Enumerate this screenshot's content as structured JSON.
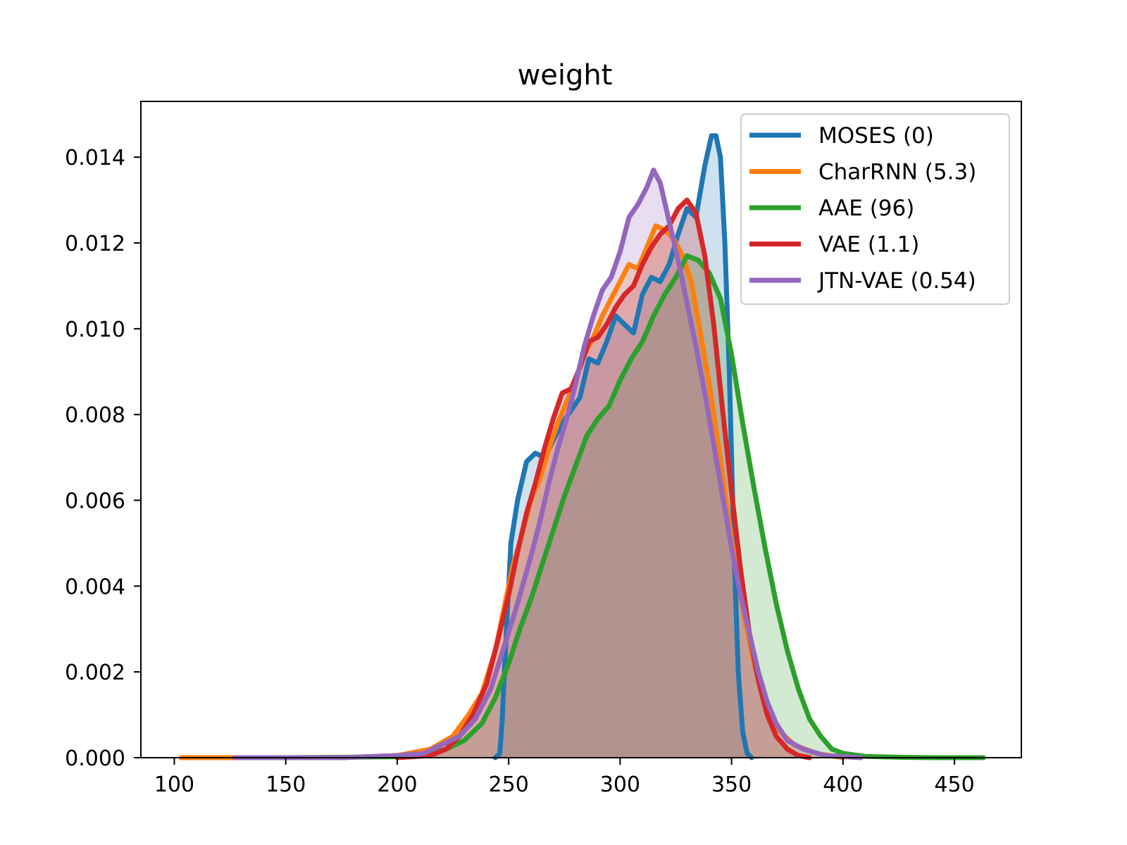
{
  "chart_data": {
    "type": "area",
    "title": "weight",
    "xlabel": "",
    "ylabel": "",
    "xlim": [
      85,
      480
    ],
    "ylim": [
      0,
      0.0153
    ],
    "x_ticks": [
      100,
      150,
      200,
      250,
      300,
      350,
      400,
      450
    ],
    "x_tick_labels": [
      "100",
      "150",
      "200",
      "250",
      "300",
      "350",
      "400",
      "450"
    ],
    "y_ticks": [
      0.0,
      0.002,
      0.004,
      0.006,
      0.008,
      0.01,
      0.012,
      0.014
    ],
    "y_tick_labels": [
      "0.000",
      "0.002",
      "0.004",
      "0.006",
      "0.008",
      "0.010",
      "0.012",
      "0.014"
    ],
    "legend_position": "top-right",
    "series": [
      {
        "name": "MOSES (0)",
        "color": "#1f77b4",
        "points": [
          [
            244,
            0
          ],
          [
            246,
            0.0001
          ],
          [
            247,
            0.0008
          ],
          [
            249,
            0.003
          ],
          [
            251,
            0.005
          ],
          [
            254,
            0.006
          ],
          [
            258,
            0.0069
          ],
          [
            262,
            0.0071
          ],
          [
            266,
            0.007
          ],
          [
            270,
            0.0074
          ],
          [
            274,
            0.0078
          ],
          [
            278,
            0.0081
          ],
          [
            282,
            0.0084
          ],
          [
            286,
            0.0093
          ],
          [
            290,
            0.0092
          ],
          [
            294,
            0.0097
          ],
          [
            298,
            0.0103
          ],
          [
            302,
            0.0101
          ],
          [
            306,
            0.0099
          ],
          [
            310,
            0.0108
          ],
          [
            314,
            0.0112
          ],
          [
            318,
            0.0111
          ],
          [
            322,
            0.0115
          ],
          [
            326,
            0.0122
          ],
          [
            330,
            0.0128
          ],
          [
            334,
            0.0126
          ],
          [
            338,
            0.0138
          ],
          [
            341,
            0.0145
          ],
          [
            343,
            0.0145
          ],
          [
            345,
            0.014
          ],
          [
            347,
            0.012
          ],
          [
            349,
            0.009
          ],
          [
            351,
            0.005
          ],
          [
            353,
            0.002
          ],
          [
            355,
            0.0006
          ],
          [
            357,
            0.0001
          ],
          [
            359,
            0
          ]
        ]
      },
      {
        "name": "CharRNN (5.3)",
        "color": "#ff7f0e",
        "points": [
          [
            103,
            0
          ],
          [
            127,
            0
          ],
          [
            150,
            0
          ],
          [
            175,
            0
          ],
          [
            200,
            5e-05
          ],
          [
            215,
            0.0002
          ],
          [
            225,
            0.0005
          ],
          [
            232,
            0.001
          ],
          [
            238,
            0.0015
          ],
          [
            244,
            0.0025
          ],
          [
            248,
            0.0035
          ],
          [
            252,
            0.0045
          ],
          [
            256,
            0.0052
          ],
          [
            260,
            0.006
          ],
          [
            264,
            0.0065
          ],
          [
            268,
            0.0072
          ],
          [
            272,
            0.0078
          ],
          [
            276,
            0.0083
          ],
          [
            280,
            0.0088
          ],
          [
            284,
            0.0094
          ],
          [
            288,
            0.0098
          ],
          [
            292,
            0.0103
          ],
          [
            296,
            0.0107
          ],
          [
            300,
            0.0111
          ],
          [
            304,
            0.0115
          ],
          [
            308,
            0.0114
          ],
          [
            312,
            0.0119
          ],
          [
            316,
            0.0124
          ],
          [
            320,
            0.0123
          ],
          [
            324,
            0.0121
          ],
          [
            328,
            0.0117
          ],
          [
            332,
            0.0111
          ],
          [
            336,
            0.0099
          ],
          [
            340,
            0.0087
          ],
          [
            344,
            0.0073
          ],
          [
            348,
            0.0058
          ],
          [
            352,
            0.0044
          ],
          [
            356,
            0.0032
          ],
          [
            360,
            0.0022
          ],
          [
            365,
            0.0013
          ],
          [
            370,
            0.0007
          ],
          [
            378,
            0.0003
          ],
          [
            388,
            0.0001
          ],
          [
            400,
            0
          ]
        ]
      },
      {
        "name": "AAE (96)",
        "color": "#2ca02c",
        "points": [
          [
            150,
            0
          ],
          [
            200,
            2e-05
          ],
          [
            215,
            0.0001
          ],
          [
            222,
            0.0002
          ],
          [
            230,
            0.0004
          ],
          [
            238,
            0.0008
          ],
          [
            244,
            0.0014
          ],
          [
            250,
            0.0022
          ],
          [
            255,
            0.003
          ],
          [
            260,
            0.0037
          ],
          [
            265,
            0.0045
          ],
          [
            270,
            0.0053
          ],
          [
            275,
            0.0061
          ],
          [
            280,
            0.0068
          ],
          [
            285,
            0.0075
          ],
          [
            290,
            0.0079
          ],
          [
            295,
            0.0082
          ],
          [
            300,
            0.0088
          ],
          [
            305,
            0.0093
          ],
          [
            310,
            0.0097
          ],
          [
            315,
            0.0103
          ],
          [
            320,
            0.0108
          ],
          [
            325,
            0.0112
          ],
          [
            330,
            0.0117
          ],
          [
            335,
            0.0116
          ],
          [
            340,
            0.0113
          ],
          [
            345,
            0.0107
          ],
          [
            350,
            0.0094
          ],
          [
            355,
            0.0078
          ],
          [
            360,
            0.0063
          ],
          [
            365,
            0.0049
          ],
          [
            370,
            0.0036
          ],
          [
            375,
            0.0025
          ],
          [
            380,
            0.0016
          ],
          [
            385,
            0.0009
          ],
          [
            390,
            0.0005
          ],
          [
            395,
            0.0002
          ],
          [
            400,
            0.0001
          ],
          [
            410,
            3e-05
          ],
          [
            425,
            1e-05
          ],
          [
            440,
            0
          ],
          [
            463,
            0
          ]
        ]
      },
      {
        "name": "VAE (1.1)",
        "color": "#d62728",
        "points": [
          [
            200,
            0
          ],
          [
            215,
            5e-05
          ],
          [
            222,
            0.0002
          ],
          [
            228,
            0.0005
          ],
          [
            234,
            0.001
          ],
          [
            240,
            0.0017
          ],
          [
            245,
            0.0027
          ],
          [
            250,
            0.0038
          ],
          [
            254,
            0.0048
          ],
          [
            258,
            0.0057
          ],
          [
            262,
            0.0064
          ],
          [
            266,
            0.0072
          ],
          [
            270,
            0.0079
          ],
          [
            274,
            0.0085
          ],
          [
            278,
            0.0086
          ],
          [
            282,
            0.0091
          ],
          [
            286,
            0.0097
          ],
          [
            290,
            0.0098
          ],
          [
            294,
            0.0101
          ],
          [
            298,
            0.0105
          ],
          [
            302,
            0.0108
          ],
          [
            306,
            0.011
          ],
          [
            310,
            0.0115
          ],
          [
            314,
            0.0119
          ],
          [
            318,
            0.0122
          ],
          [
            322,
            0.0124
          ],
          [
            326,
            0.0128
          ],
          [
            330,
            0.013
          ],
          [
            334,
            0.0127
          ],
          [
            338,
            0.0117
          ],
          [
            342,
            0.0101
          ],
          [
            346,
            0.0081
          ],
          [
            350,
            0.0062
          ],
          [
            354,
            0.0044
          ],
          [
            358,
            0.0029
          ],
          [
            362,
            0.0018
          ],
          [
            366,
            0.001
          ],
          [
            370,
            0.0005
          ],
          [
            375,
            0.0002
          ],
          [
            380,
            5e-05
          ],
          [
            385,
            0
          ]
        ]
      },
      {
        "name": "JTN-VAE (0.54)",
        "color": "#9467bd",
        "points": [
          [
            127,
            0
          ],
          [
            150,
            0
          ],
          [
            175,
            0
          ],
          [
            200,
            5e-05
          ],
          [
            212,
            0.0001
          ],
          [
            220,
            0.0003
          ],
          [
            228,
            0.0005
          ],
          [
            235,
            0.0009
          ],
          [
            242,
            0.0016
          ],
          [
            248,
            0.0026
          ],
          [
            254,
            0.0036
          ],
          [
            260,
            0.0047
          ],
          [
            264,
            0.0055
          ],
          [
            268,
            0.0064
          ],
          [
            272,
            0.0072
          ],
          [
            276,
            0.0079
          ],
          [
            280,
            0.0087
          ],
          [
            284,
            0.0096
          ],
          [
            288,
            0.0103
          ],
          [
            292,
            0.0109
          ],
          [
            296,
            0.0112
          ],
          [
            300,
            0.0118
          ],
          [
            304,
            0.0126
          ],
          [
            308,
            0.0129
          ],
          [
            312,
            0.0133
          ],
          [
            315,
            0.0137
          ],
          [
            318,
            0.0134
          ],
          [
            322,
            0.0125
          ],
          [
            326,
            0.0116
          ],
          [
            330,
            0.0106
          ],
          [
            334,
            0.0096
          ],
          [
            338,
            0.0085
          ],
          [
            342,
            0.0073
          ],
          [
            346,
            0.0061
          ],
          [
            350,
            0.0049
          ],
          [
            354,
            0.0038
          ],
          [
            358,
            0.0029
          ],
          [
            362,
            0.002
          ],
          [
            366,
            0.0013
          ],
          [
            370,
            0.0008
          ],
          [
            375,
            0.0004
          ],
          [
            382,
            0.0002
          ],
          [
            392,
            5e-05
          ],
          [
            408,
            0
          ]
        ]
      }
    ]
  }
}
